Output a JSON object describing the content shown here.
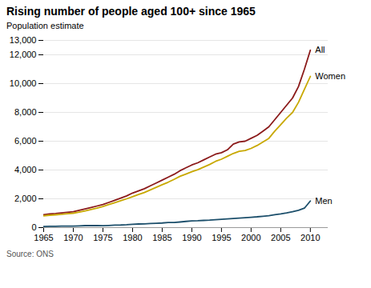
{
  "chart_data": {
    "type": "line",
    "title": "Rising number of people aged 100+ since 1965",
    "ylabel": "Population estimate",
    "caption": "Source: ONS",
    "x": [
      1965,
      1966,
      1967,
      1968,
      1969,
      1970,
      1971,
      1972,
      1973,
      1974,
      1975,
      1976,
      1977,
      1978,
      1979,
      1980,
      1981,
      1982,
      1983,
      1984,
      1985,
      1986,
      1987,
      1988,
      1989,
      1990,
      1991,
      1992,
      1993,
      1994,
      1995,
      1996,
      1997,
      1998,
      1999,
      2000,
      2001,
      2002,
      2003,
      2004,
      2005,
      2006,
      2007,
      2008,
      2009,
      2010
    ],
    "series": [
      {
        "name": "All",
        "color": "#8b1a1a",
        "values": [
          900,
          950,
          980,
          1020,
          1060,
          1100,
          1200,
          1300,
          1400,
          1500,
          1600,
          1750,
          1900,
          2050,
          2200,
          2400,
          2550,
          2700,
          2900,
          3100,
          3300,
          3500,
          3700,
          3950,
          4150,
          4350,
          4500,
          4700,
          4900,
          5100,
          5200,
          5400,
          5800,
          5950,
          6000,
          6200,
          6400,
          6700,
          7000,
          7500,
          8000,
          8500,
          9000,
          9800,
          11000,
          12320
        ]
      },
      {
        "name": "Women",
        "color": "#c8a800",
        "values": [
          820,
          860,
          890,
          920,
          960,
          1000,
          1080,
          1160,
          1260,
          1360,
          1470,
          1600,
          1730,
          1870,
          2000,
          2150,
          2300,
          2440,
          2620,
          2800,
          2980,
          3150,
          3350,
          3560,
          3720,
          3880,
          4020,
          4200,
          4380,
          4600,
          4750,
          4950,
          5150,
          5300,
          5350,
          5500,
          5700,
          5950,
          6200,
          6700,
          7150,
          7600,
          8000,
          8700,
          9600,
          10500
        ]
      },
      {
        "name": "Men",
        "color": "#1c4f6b",
        "values": [
          80,
          90,
          90,
          100,
          100,
          100,
          120,
          140,
          140,
          140,
          130,
          150,
          170,
          180,
          200,
          230,
          250,
          260,
          280,
          300,
          320,
          350,
          350,
          390,
          430,
          470,
          480,
          500,
          520,
          550,
          575,
          600,
          630,
          660,
          690,
          720,
          750,
          790,
          830,
          890,
          950,
          1020,
          1100,
          1200,
          1350,
          1850
        ]
      }
    ],
    "xlim": [
      1965,
      2013
    ],
    "xticks": [
      1965,
      1970,
      1975,
      1980,
      1985,
      1990,
      1995,
      2000,
      2005,
      2010
    ],
    "ylim": [
      0,
      13000
    ],
    "yticks": [
      0,
      {
        "value": 2000,
        "label": "2,000"
      },
      {
        "value": 4000,
        "label": "4,000"
      },
      {
        "value": 6000,
        "label": "6,000"
      },
      {
        "value": 8000,
        "label": "8,000"
      },
      {
        "value": 10000,
        "label": "10,000"
      },
      {
        "value": 12000,
        "label": "12,000"
      },
      {
        "value": 13000,
        "label": "13,000"
      }
    ],
    "grid": true
  }
}
